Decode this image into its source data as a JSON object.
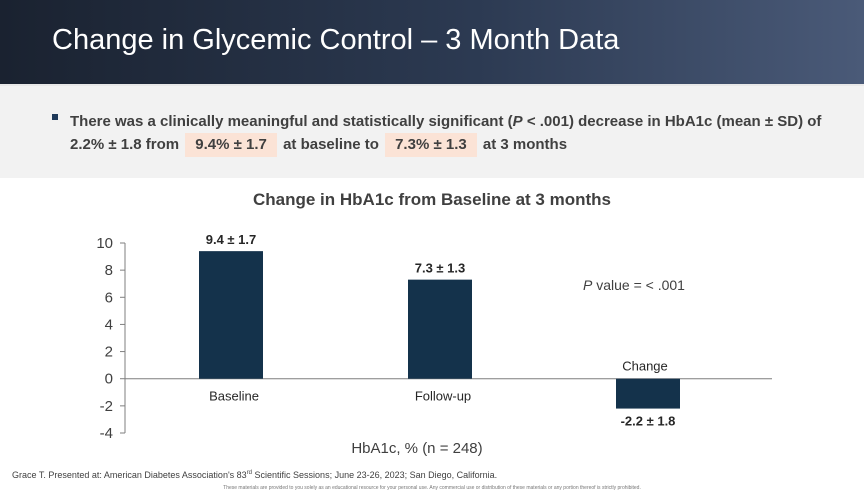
{
  "slide": {
    "title": "Change in Glycemic Control – 3 Month Data"
  },
  "bullet": {
    "part1": "There was a clinically meaningful and statistically significant (",
    "p_letter": "P",
    "part2": " < .001) decrease in HbA1c (mean ± SD) of 2.2% ± 1.8 from",
    "highlight1": "9.4% ± 1.7",
    "part3": "at baseline to",
    "highlight2": "7.3% ± 1.3",
    "part4": "at 3 months"
  },
  "chart_data": {
    "type": "bar",
    "title": "Change in HbA1c from Baseline at 3 months",
    "xlabel": "HbA1c, % (n = 248)",
    "ylabel": "",
    "ylim": [
      -4,
      10
    ],
    "yticks": [
      10,
      8,
      6,
      4,
      2,
      0,
      -2,
      -4
    ],
    "categories": [
      "Baseline",
      "Follow-up",
      "Change"
    ],
    "values": [
      9.4,
      7.3,
      -2.2
    ],
    "data_labels": [
      "9.4 ± 1.7",
      "7.3 ± 1.3",
      "-2.2 ± 1.8"
    ],
    "annotation": {
      "p_letter": "P",
      "text": " value = < .001"
    },
    "bar_color": "#14324b"
  },
  "footnote": {
    "text_before": "Grace T. Presented at: American Diabetes Association's 83",
    "sup": "rd",
    "text_after": " Scientific Sessions; June 23-26, 2023; San Diego, California."
  },
  "disclaimer": "These materials are provided to you solely as an educational resource for your personal use. Any commercial use or distribution of these materials or any portion thereof is strictly prohibited."
}
